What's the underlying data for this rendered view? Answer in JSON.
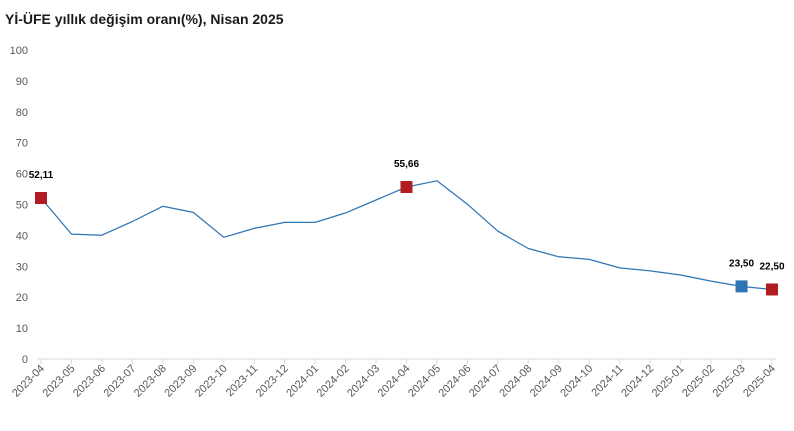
{
  "title": "Yİ-ÜFE yıllık değişim oranı(%), Nisan 2025",
  "chart_data": {
    "type": "line",
    "title": "Yİ-ÜFE yıllık değişim oranı(%), Nisan 2025",
    "xlabel": "",
    "ylabel": "",
    "ylim": [
      0,
      100
    ],
    "yticks": [
      "0",
      "10",
      "20",
      "30",
      "40",
      "50",
      "60",
      "70",
      "80",
      "90",
      "100"
    ],
    "grid": false,
    "categories": [
      "2023-04",
      "2023-05",
      "2023-06",
      "2023-07",
      "2023-08",
      "2023-09",
      "2023-10",
      "2023-11",
      "2023-12",
      "2024-01",
      "2024-02",
      "2024-03",
      "2024-04",
      "2024-05",
      "2024-06",
      "2024-07",
      "2024-08",
      "2024-09",
      "2024-10",
      "2024-11",
      "2024-12",
      "2025-01",
      "2025-02",
      "2025-03",
      "2025-04"
    ],
    "series": [
      {
        "values": [
          52.11,
          40.42,
          40.05,
          44.5,
          49.41,
          47.44,
          39.39,
          42.25,
          44.22,
          44.2,
          47.29,
          51.47,
          55.66,
          57.68,
          50.09,
          41.37,
          35.75,
          33.09,
          32.24,
          29.47,
          28.52,
          27.2,
          25.21,
          23.5,
          22.5
        ],
        "color": "#2e75b6"
      }
    ],
    "highlighted_points": [
      {
        "category": "2023-04",
        "label": "52,11",
        "color": "#b01c22"
      },
      {
        "category": "2024-04",
        "label": "55,66",
        "color": "#b01c22"
      },
      {
        "category": "2025-03",
        "label": "23,50",
        "color": "#2e75b6"
      },
      {
        "category": "2025-04",
        "label": "22,50",
        "color": "#b01c22"
      }
    ]
  }
}
